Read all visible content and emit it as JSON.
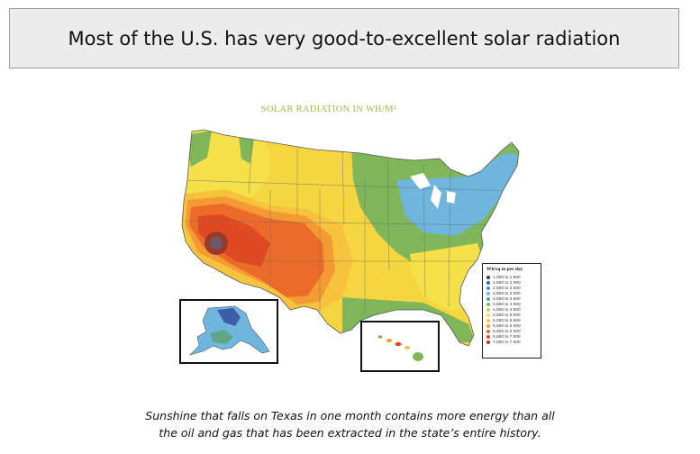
{
  "header": {
    "title": "Most of the U.S. has very good-to-excellent solar radiation"
  },
  "map": {
    "title": "SOLAR RADIATION IN WH/M²",
    "legend": {
      "title": "Wh/sq m per day",
      "items": [
        {
          "label": "1,000 to 1 500",
          "color": "#3a3a7a"
        },
        {
          "label": "1,500 to 2 000",
          "color": "#3d5da8"
        },
        {
          "label": "2,000 to 2 500",
          "color": "#4f8fd0"
        },
        {
          "label": "2,500 to 3 000",
          "color": "#6fb6de"
        },
        {
          "label": "3,000 to 3 500",
          "color": "#5fa784"
        },
        {
          "label": "3,500 to 4 000",
          "color": "#7fb65a"
        },
        {
          "label": "4,000 to 4 500",
          "color": "#c6d24a"
        },
        {
          "label": "4,500 to 5 000",
          "color": "#f4e04a"
        },
        {
          "label": "5,000 to 5 500",
          "color": "#f7c23e"
        },
        {
          "label": "5,500 to 6 000",
          "color": "#f39a33"
        },
        {
          "label": "6,000 to 6 500",
          "color": "#ec6a2a"
        },
        {
          "label": "6,500 to 7 000",
          "color": "#e04a22"
        },
        {
          "label": "7,000 to 7 500",
          "color": "#b8321c"
        }
      ]
    }
  },
  "caption": {
    "line1": "Sunshine that falls on Texas in one month contains more energy than all",
    "line2": "the oil and gas that has been extracted in the state’s entire history."
  }
}
